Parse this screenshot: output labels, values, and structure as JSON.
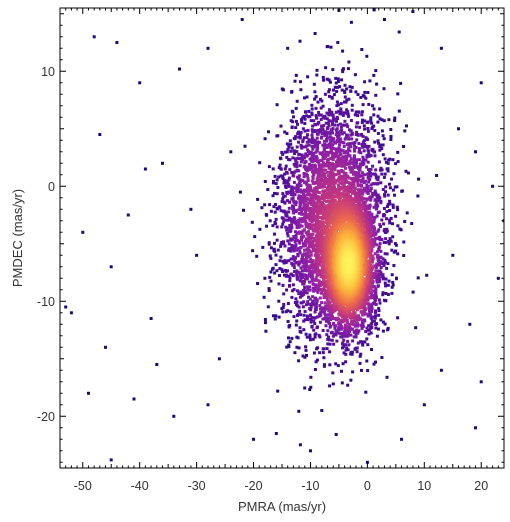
{
  "chart_data": {
    "type": "scatter",
    "subtype": "density-colored scatter",
    "title": "",
    "xlabel": "PMRA (mas/yr)",
    "ylabel": "PMDEC (mas/yr)",
    "xlim": [
      -54,
      24
    ],
    "ylim": [
      -24.5,
      15.5
    ],
    "x_ticks": [
      -50,
      -40,
      -30,
      -20,
      -10,
      0,
      10,
      20
    ],
    "y_ticks": [
      10,
      0,
      -10,
      -20
    ],
    "x_tick_labels": [
      "-50",
      "-40",
      "-30",
      "-20",
      "-10",
      "0",
      "10",
      "20"
    ],
    "y_tick_labels": [
      "10",
      "0",
      "-10",
      "-20"
    ],
    "grid": false,
    "legend": "none",
    "colormap": [
      "#1b0a7a",
      "#4a0c9a",
      "#8c1fa8",
      "#c2367e",
      "#ec6a4a",
      "#fbb43a",
      "#fdf35a"
    ],
    "density_components": [
      {
        "center": [
          -6.0,
          -3.0
        ],
        "sigma": [
          4.8,
          5.2
        ],
        "weight": 0.6
      },
      {
        "center": [
          -3.2,
          -7.0
        ],
        "sigma": [
          2.2,
          2.6
        ],
        "weight": 0.4
      }
    ],
    "sparse_points": [
      [
        -48,
        13
      ],
      [
        -44,
        12.5
      ],
      [
        -40,
        9
      ],
      [
        -47,
        4.5
      ],
      [
        -33,
        10.2
      ],
      [
        -28,
        12
      ],
      [
        -22,
        14.5
      ],
      [
        -36,
        2
      ],
      [
        -42,
        -2.5
      ],
      [
        -50,
        -4
      ],
      [
        -45,
        -7
      ],
      [
        -52,
        -11
      ],
      [
        -38,
        -11.5
      ],
      [
        -46,
        -14
      ],
      [
        -30,
        -6
      ],
      [
        -26,
        -15
      ],
      [
        -49,
        -18
      ],
      [
        -41,
        -18.5
      ],
      [
        -34,
        -20
      ],
      [
        -28,
        -19
      ],
      [
        -20,
        -22
      ],
      [
        -45,
        -23.8
      ],
      [
        -18,
        -8
      ],
      [
        -14,
        12
      ],
      [
        -5,
        15.3
      ],
      [
        3,
        14.5
      ],
      [
        8,
        15.2
      ],
      [
        13,
        12
      ],
      [
        20,
        9
      ],
      [
        19,
        3
      ],
      [
        22,
        0
      ],
      [
        24,
        -3
      ],
      [
        15,
        -6
      ],
      [
        18,
        -12
      ],
      [
        20,
        -17
      ],
      [
        19,
        -21
      ],
      [
        13,
        -16
      ],
      [
        10,
        -19
      ],
      [
        6,
        -22
      ],
      [
        -8,
        -19.5
      ],
      [
        -16,
        -21.5
      ],
      [
        -10,
        -23
      ],
      [
        0,
        -24
      ],
      [
        23,
        -8
      ],
      [
        16,
        5
      ],
      [
        -24,
        3
      ],
      [
        -31,
        -2
      ],
      [
        -53,
        -10.5
      ],
      [
        -37,
        -15.5
      ],
      [
        -39,
        1.5
      ]
    ],
    "n_dense_points": 6500
  }
}
